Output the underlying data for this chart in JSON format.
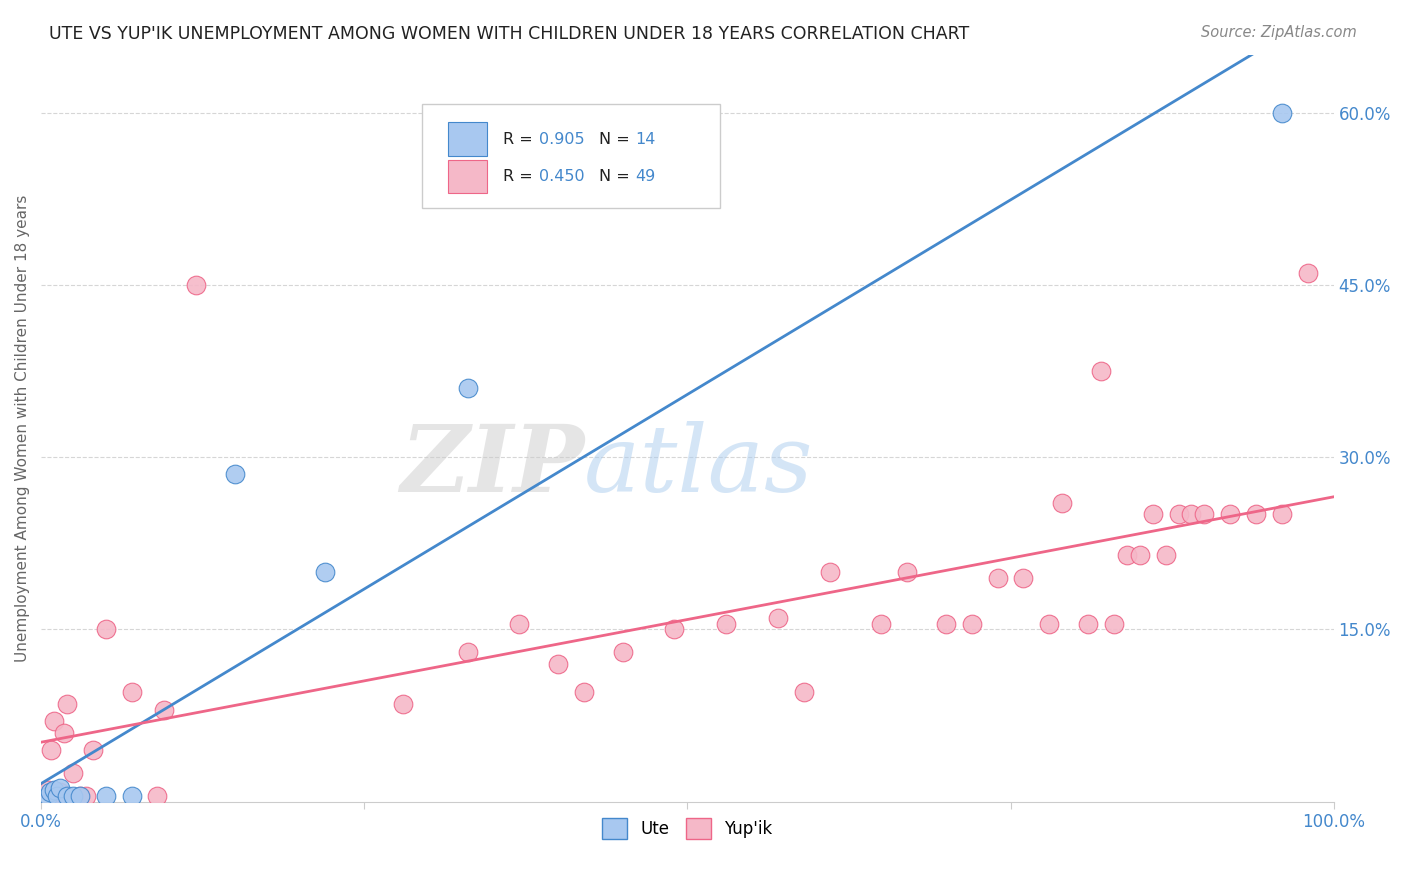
{
  "title": "UTE VS YUP'IK UNEMPLOYMENT AMONG WOMEN WITH CHILDREN UNDER 18 YEARS CORRELATION CHART",
  "source": "Source: ZipAtlas.com",
  "ylabel": "Unemployment Among Women with Children Under 18 years",
  "ytick_labels": [
    "15.0%",
    "30.0%",
    "45.0%",
    "60.0%"
  ],
  "ytick_values": [
    0.15,
    0.3,
    0.45,
    0.6
  ],
  "xlim": [
    0.0,
    1.0
  ],
  "ylim": [
    0.0,
    0.65
  ],
  "ute_color": "#a8c8f0",
  "yupik_color": "#f5b8c8",
  "ute_line_color": "#4488cc",
  "yupik_line_color": "#ee6688",
  "legend_r_ute": "0.905",
  "legend_n_ute": "14",
  "legend_r_yupik": "0.450",
  "legend_n_yupik": "49",
  "ute_scatter": [
    [
      0.005,
      0.005
    ],
    [
      0.007,
      0.008
    ],
    [
      0.01,
      0.01
    ],
    [
      0.012,
      0.005
    ],
    [
      0.015,
      0.012
    ],
    [
      0.02,
      0.005
    ],
    [
      0.025,
      0.005
    ],
    [
      0.03,
      0.005
    ],
    [
      0.05,
      0.005
    ],
    [
      0.07,
      0.005
    ],
    [
      0.15,
      0.285
    ],
    [
      0.22,
      0.2
    ],
    [
      0.33,
      0.36
    ],
    [
      0.96,
      0.6
    ]
  ],
  "yupik_scatter": [
    [
      0.005,
      0.01
    ],
    [
      0.008,
      0.045
    ],
    [
      0.01,
      0.07
    ],
    [
      0.012,
      0.005
    ],
    [
      0.015,
      0.008
    ],
    [
      0.018,
      0.06
    ],
    [
      0.02,
      0.085
    ],
    [
      0.025,
      0.025
    ],
    [
      0.03,
      0.005
    ],
    [
      0.035,
      0.005
    ],
    [
      0.04,
      0.045
    ],
    [
      0.05,
      0.15
    ],
    [
      0.07,
      0.095
    ],
    [
      0.09,
      0.005
    ],
    [
      0.095,
      0.08
    ],
    [
      0.12,
      0.45
    ],
    [
      0.28,
      0.085
    ],
    [
      0.33,
      0.13
    ],
    [
      0.37,
      0.155
    ],
    [
      0.4,
      0.12
    ],
    [
      0.42,
      0.095
    ],
    [
      0.45,
      0.13
    ],
    [
      0.49,
      0.15
    ],
    [
      0.53,
      0.155
    ],
    [
      0.57,
      0.16
    ],
    [
      0.59,
      0.095
    ],
    [
      0.61,
      0.2
    ],
    [
      0.65,
      0.155
    ],
    [
      0.67,
      0.2
    ],
    [
      0.7,
      0.155
    ],
    [
      0.72,
      0.155
    ],
    [
      0.74,
      0.195
    ],
    [
      0.76,
      0.195
    ],
    [
      0.78,
      0.155
    ],
    [
      0.79,
      0.26
    ],
    [
      0.81,
      0.155
    ],
    [
      0.82,
      0.375
    ],
    [
      0.83,
      0.155
    ],
    [
      0.84,
      0.215
    ],
    [
      0.85,
      0.215
    ],
    [
      0.86,
      0.25
    ],
    [
      0.87,
      0.215
    ],
    [
      0.88,
      0.25
    ],
    [
      0.89,
      0.25
    ],
    [
      0.9,
      0.25
    ],
    [
      0.92,
      0.25
    ],
    [
      0.94,
      0.25
    ],
    [
      0.96,
      0.25
    ],
    [
      0.98,
      0.46
    ]
  ]
}
